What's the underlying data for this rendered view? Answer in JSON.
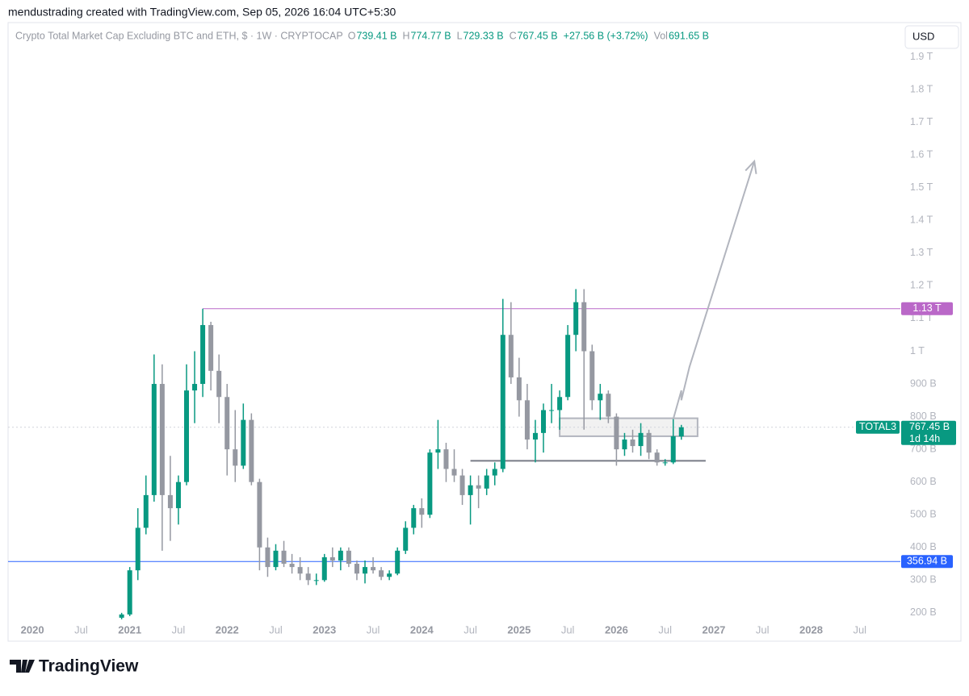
{
  "header": "mendustrading created with TradingView.com, Sep 05, 2026 16:04 UTC+5:30",
  "currency_button": "USD",
  "footer": "TradingView",
  "chart_data": {
    "type": "candlestick",
    "title": "Crypto Total Market Cap Excluding BTC and ETH, $ · 1W · CRYPTOCAP",
    "legend": [
      {
        "label": "O",
        "value": "739.41 B"
      },
      {
        "label": "H",
        "value": "774.77 B"
      },
      {
        "label": "L",
        "value": "729.33 B"
      },
      {
        "label": "C",
        "value": "767.45 B"
      },
      {
        "label": "",
        "value": "+27.56 B (+3.72%)"
      },
      {
        "label": "Vol",
        "value": "691.65 B"
      }
    ],
    "up_color": "#089981",
    "down_color": "#9598a1",
    "xlim": [
      "2019-10",
      "2028-12"
    ],
    "ylim": [
      175,
      2005
    ],
    "xticks": [
      {
        "value": "2020-01",
        "label": "2020"
      },
      {
        "value": "2020-07",
        "label": "Jul"
      },
      {
        "value": "2021-01",
        "label": "2021"
      },
      {
        "value": "2021-07",
        "label": "Jul"
      },
      {
        "value": "2022-01",
        "label": "2022"
      },
      {
        "value": "2022-07",
        "label": "Jul"
      },
      {
        "value": "2023-01",
        "label": "2023"
      },
      {
        "value": "2023-07",
        "label": "Jul"
      },
      {
        "value": "2024-01",
        "label": "2024"
      },
      {
        "value": "2024-07",
        "label": "Jul"
      },
      {
        "value": "2025-01",
        "label": "2025"
      },
      {
        "value": "2025-07",
        "label": "Jul"
      },
      {
        "value": "2026-01",
        "label": "2026"
      },
      {
        "value": "2026-07",
        "label": "Jul"
      },
      {
        "value": "2027-01",
        "label": "2027"
      },
      {
        "value": "2027-07",
        "label": "Jul"
      },
      {
        "value": "2028-01",
        "label": "2028"
      },
      {
        "value": "2028-07",
        "label": "Jul"
      }
    ],
    "yticks": [
      {
        "value": 200,
        "label": "200 B"
      },
      {
        "value": 300,
        "label": "300 B"
      },
      {
        "value": 400,
        "label": "400 B"
      },
      {
        "value": 500,
        "label": "500 B"
      },
      {
        "value": 600,
        "label": "600 B"
      },
      {
        "value": 700,
        "label": "700 B"
      },
      {
        "value": 800,
        "label": "800 B"
      },
      {
        "value": 900,
        "label": "900 B"
      },
      {
        "value": 1000,
        "label": "1 T"
      },
      {
        "value": 1100,
        "label": "1.1 T"
      },
      {
        "value": 1200,
        "label": "1.2 T"
      },
      {
        "value": 1300,
        "label": "1.3 T"
      },
      {
        "value": 1400,
        "label": "1.4 T"
      },
      {
        "value": 1500,
        "label": "1.5 T"
      },
      {
        "value": 1600,
        "label": "1.6 T"
      },
      {
        "value": 1700,
        "label": "1.7 T"
      },
      {
        "value": 1800,
        "label": "1.8 T"
      },
      {
        "value": 1900,
        "label": "1.9 T"
      }
    ],
    "x": [
      "2020-12",
      "2021-01",
      "2021-02",
      "2021-03",
      "2021-04",
      "2021-05",
      "2021-06",
      "2021-07",
      "2021-08",
      "2021-09",
      "2021-10",
      "2021-11",
      "2021-12",
      "2022-01",
      "2022-02",
      "2022-03",
      "2022-04",
      "2022-05",
      "2022-06",
      "2022-07",
      "2022-08",
      "2022-09",
      "2022-10",
      "2022-11",
      "2022-12",
      "2023-01",
      "2023-02",
      "2023-03",
      "2023-04",
      "2023-05",
      "2023-06",
      "2023-07",
      "2023-08",
      "2023-09",
      "2023-10",
      "2023-11",
      "2023-12",
      "2024-01",
      "2024-02",
      "2024-03",
      "2024-04",
      "2024-05",
      "2024-06",
      "2024-07",
      "2024-08",
      "2024-09",
      "2024-10",
      "2024-11",
      "2024-12",
      "2025-01",
      "2025-02",
      "2025-03",
      "2025-04",
      "2025-05",
      "2025-06",
      "2025-07",
      "2025-08",
      "2025-09",
      "2025-10",
      "2025-11",
      "2025-12",
      "2026-01",
      "2026-02",
      "2026-03",
      "2026-04",
      "2026-05",
      "2026-06",
      "2026-07",
      "2026-08",
      "2026-09"
    ],
    "open": [
      185,
      195,
      330,
      460,
      560,
      900,
      560,
      520,
      600,
      880,
      900,
      1080,
      940,
      860,
      700,
      650,
      790,
      600,
      400,
      340,
      390,
      350,
      340,
      320,
      300,
      300,
      370,
      360,
      390,
      350,
      320,
      340,
      330,
      310,
      320,
      390,
      460,
      520,
      500,
      690,
      700,
      640,
      620,
      560,
      590,
      580,
      620,
      640,
      1050,
      920,
      850,
      730,
      750,
      820,
      820,
      860,
      1050,
      1150,
      1000,
      850,
      870,
      800,
      700,
      730,
      710,
      750,
      690,
      660,
      660,
      739.41
    ],
    "high": [
      200,
      340,
      520,
      620,
      990,
      960,
      680,
      620,
      960,
      1000,
      1130,
      1090,
      990,
      900,
      820,
      840,
      810,
      610,
      430,
      410,
      420,
      380,
      370,
      340,
      320,
      380,
      400,
      400,
      400,
      360,
      360,
      370,
      340,
      330,
      400,
      480,
      530,
      550,
      700,
      790,
      720,
      700,
      640,
      620,
      620,
      640,
      660,
      1160,
      1150,
      980,
      900,
      790,
      840,
      900,
      880,
      1080,
      1190,
      1190,
      1020,
      900,
      880,
      810,
      750,
      760,
      780,
      760,
      700,
      670,
      795,
      774.77
    ],
    "low": [
      180,
      190,
      300,
      440,
      540,
      390,
      420,
      470,
      590,
      780,
      860,
      880,
      780,
      620,
      600,
      640,
      590,
      330,
      310,
      330,
      340,
      320,
      300,
      285,
      285,
      295,
      340,
      330,
      340,
      300,
      290,
      320,
      300,
      300,
      315,
      380,
      440,
      460,
      490,
      640,
      600,
      600,
      530,
      470,
      520,
      560,
      590,
      630,
      900,
      800,
      700,
      660,
      690,
      780,
      760,
      850,
      1000,
      760,
      820,
      790,
      780,
      650,
      680,
      690,
      680,
      670,
      650,
      650,
      655,
      729.33
    ],
    "close": [
      195,
      330,
      460,
      560,
      900,
      560,
      520,
      600,
      880,
      900,
      1080,
      940,
      860,
      700,
      650,
      790,
      600,
      400,
      340,
      390,
      350,
      340,
      320,
      300,
      300,
      370,
      360,
      390,
      350,
      320,
      340,
      330,
      310,
      320,
      390,
      460,
      520,
      500,
      690,
      700,
      640,
      620,
      560,
      590,
      580,
      620,
      640,
      1050,
      920,
      850,
      730,
      750,
      820,
      820,
      860,
      1050,
      1150,
      1000,
      850,
      870,
      800,
      700,
      730,
      710,
      750,
      690,
      660,
      660,
      740,
      767.45
    ],
    "levels": [
      {
        "value": 1130,
        "label": "1.13 T",
        "color": "#ba68c8",
        "from": "2021-10"
      },
      {
        "value": 356.94,
        "label": "356.94 B",
        "color": "#2962ff",
        "from": "2019-10"
      },
      {
        "value": 665,
        "color": "#787b86",
        "from": "2024-07",
        "to": "2026-12"
      }
    ],
    "zone": {
      "low": 740,
      "high": 795,
      "from": "2025-06",
      "to": "2026-11"
    },
    "projection": [
      [
        "2026-08",
        792
      ],
      [
        "2026-09",
        880
      ],
      [
        "2026-09",
        850
      ],
      [
        "2026-10",
        952
      ],
      [
        "2027-06",
        1581
      ]
    ],
    "price_label": {
      "symbol": "TOTAL3",
      "value": 767.45,
      "value_label": "767.45 B",
      "countdown": "1d 14h",
      "color": "#089981"
    }
  }
}
